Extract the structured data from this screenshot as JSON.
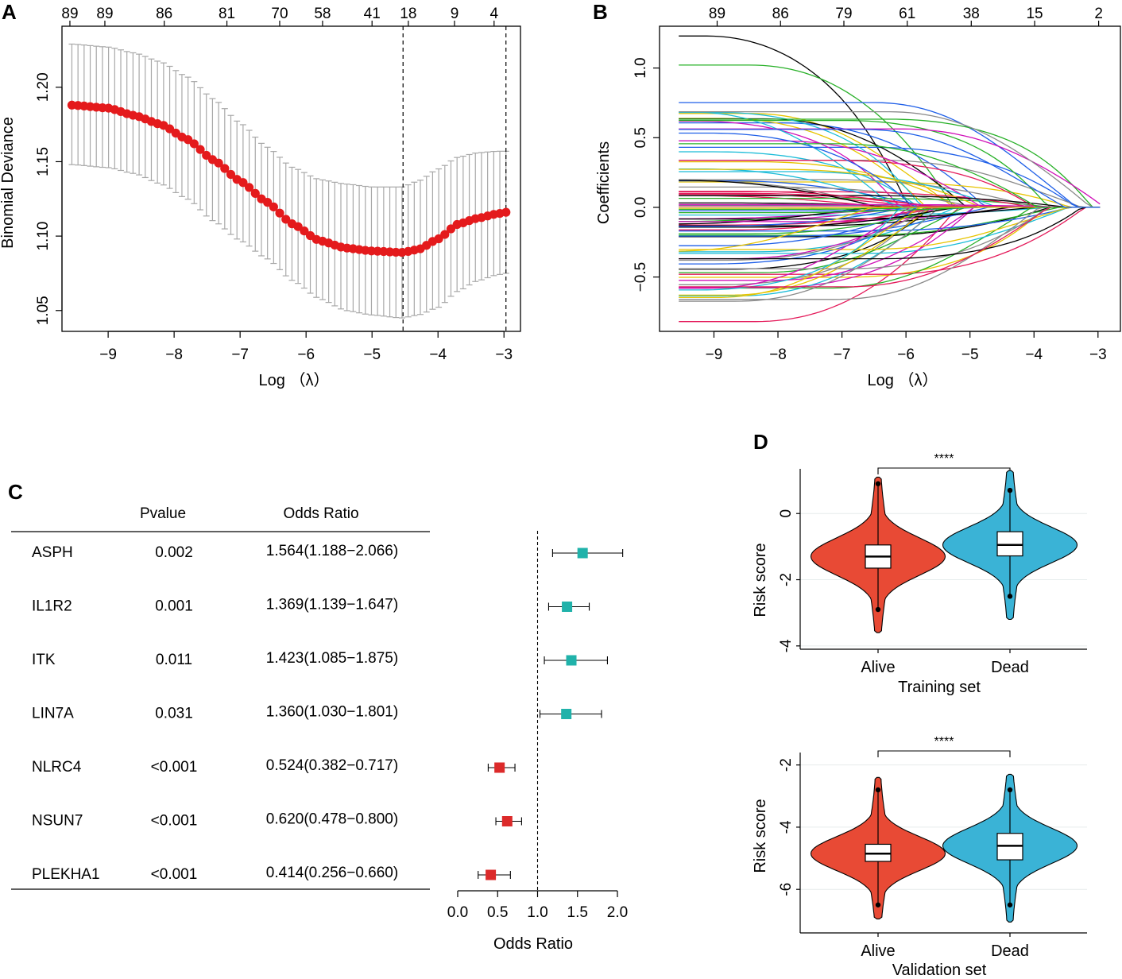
{
  "panels": {
    "a": "A",
    "b": "B",
    "c": "C",
    "d": "D"
  },
  "chart_data": [
    {
      "id": "A",
      "type": "scatter",
      "title": "",
      "xlabel": "Log （λ）",
      "ylabel": "Binomial Deviance",
      "xlim": [
        -9.7,
        -2.75
      ],
      "ylim": [
        1.036,
        1.241
      ],
      "xticks": [
        -9,
        -8,
        -7,
        -6,
        -5,
        -4,
        -3
      ],
      "yticks": [
        1.05,
        1.1,
        1.15,
        1.2
      ],
      "ytick_labels": [
        "1.05",
        "1.10",
        "1.15",
        "1.20"
      ],
      "top_axis_labels": [
        "89",
        "89",
        "86",
        "81",
        "70",
        "58",
        "41",
        "18",
        "9",
        "4"
      ],
      "top_axis_positions": [
        -9.58,
        -9.05,
        -8.15,
        -7.2,
        -6.4,
        -5.75,
        -5.0,
        -4.45,
        -3.75,
        -3.15
      ],
      "vlines": [
        -4.53,
        -2.97
      ],
      "x_start": -9.55,
      "x_end": -2.97,
      "n_points": 72,
      "mean_curve": [
        [
          -9.55,
          1.188
        ],
        [
          -9.0,
          1.186
        ],
        [
          -8.6,
          1.181
        ],
        [
          -8.2,
          1.175
        ],
        [
          -7.8,
          1.165
        ],
        [
          -7.4,
          1.151
        ],
        [
          -7.0,
          1.137
        ],
        [
          -6.6,
          1.123
        ],
        [
          -6.2,
          1.108
        ],
        [
          -5.8,
          1.097
        ],
        [
          -5.4,
          1.092
        ],
        [
          -5.0,
          1.09
        ],
        [
          -4.55,
          1.089
        ],
        [
          -4.3,
          1.091
        ],
        [
          -4.0,
          1.098
        ],
        [
          -3.7,
          1.108
        ],
        [
          -3.4,
          1.112
        ],
        [
          -3.1,
          1.115
        ],
        [
          -2.97,
          1.116
        ]
      ],
      "upper_curve": [
        [
          -9.55,
          1.229
        ],
        [
          -9.0,
          1.227
        ],
        [
          -8.6,
          1.223
        ],
        [
          -8.2,
          1.217
        ],
        [
          -7.8,
          1.207
        ],
        [
          -7.4,
          1.192
        ],
        [
          -7.0,
          1.176
        ],
        [
          -6.6,
          1.16
        ],
        [
          -6.2,
          1.146
        ],
        [
          -5.8,
          1.138
        ],
        [
          -5.4,
          1.135
        ],
        [
          -5.0,
          1.133
        ],
        [
          -4.55,
          1.133
        ],
        [
          -4.3,
          1.137
        ],
        [
          -4.0,
          1.145
        ],
        [
          -3.7,
          1.153
        ],
        [
          -3.4,
          1.156
        ],
        [
          -3.1,
          1.157
        ],
        [
          -2.97,
          1.157
        ]
      ],
      "lower_curve": [
        [
          -9.55,
          1.148
        ],
        [
          -9.0,
          1.146
        ],
        [
          -8.6,
          1.142
        ],
        [
          -8.2,
          1.135
        ],
        [
          -7.8,
          1.125
        ],
        [
          -7.4,
          1.11
        ],
        [
          -7.0,
          1.097
        ],
        [
          -6.6,
          1.085
        ],
        [
          -6.2,
          1.07
        ],
        [
          -5.8,
          1.058
        ],
        [
          -5.4,
          1.05
        ],
        [
          -5.0,
          1.047
        ],
        [
          -4.55,
          1.045
        ],
        [
          -4.3,
          1.047
        ],
        [
          -4.0,
          1.052
        ],
        [
          -3.7,
          1.063
        ],
        [
          -3.4,
          1.07
        ],
        [
          -3.1,
          1.074
        ],
        [
          -2.97,
          1.075
        ]
      ],
      "point_color": "#e41a1c",
      "bar_color": "#a8a8a8"
    },
    {
      "id": "B",
      "type": "line",
      "title": "",
      "xlabel": "Log （λ）",
      "ylabel": "Coefficients",
      "xlim": [
        -9.85,
        -2.65
      ],
      "ylim": [
        -0.89,
        1.3
      ],
      "xticks": [
        -9,
        -8,
        -7,
        -6,
        -5,
        -4,
        -3
      ],
      "yticks": [
        -0.5,
        0.0,
        0.5,
        1.0
      ],
      "ytick_labels": [
        "−0.5",
        "0.0",
        "0.5",
        "1.0"
      ],
      "top_axis_labels": [
        "89",
        "86",
        "79",
        "61",
        "38",
        "15",
        "2"
      ],
      "top_axis_positions": [
        -8.95,
        -7.96,
        -6.97,
        -5.98,
        -4.98,
        -3.99,
        -2.99
      ],
      "x_start": -9.55,
      "x_end": -2.97,
      "path_colors": [
        "#000000",
        "#e41a5a",
        "#27b027",
        "#1f5fe8",
        "#1bbcd8",
        "#d010b8",
        "#e7c400",
        "#8a8a8a"
      ],
      "n_paths": 92,
      "coef_min": -0.82,
      "coef_max": 1.23
    },
    {
      "id": "C",
      "type": "table",
      "title": "",
      "header": {
        "pvalue": "Pvalue",
        "or": "Odds Ratio"
      },
      "rows": [
        {
          "gene": "ASPH",
          "p": "0.002",
          "or_text": "1.564(1.188−2.066)",
          "or": 1.564,
          "lo": 1.188,
          "hi": 2.066,
          "color": "#20b2aa"
        },
        {
          "gene": "IL1R2",
          "p": "0.001",
          "or_text": "1.369(1.139−1.647)",
          "or": 1.369,
          "lo": 1.139,
          "hi": 1.647,
          "color": "#20b2aa"
        },
        {
          "gene": "ITK",
          "p": "0.011",
          "or_text": "1.423(1.085−1.875)",
          "or": 1.423,
          "lo": 1.085,
          "hi": 1.875,
          "color": "#20b2aa"
        },
        {
          "gene": "LIN7A",
          "p": "0.031",
          "or_text": "1.360(1.030−1.801)",
          "or": 1.36,
          "lo": 1.03,
          "hi": 1.801,
          "color": "#20b2aa"
        },
        {
          "gene": "NLRC4",
          "p": "<0.001",
          "or_text": "0.524(0.382−0.717)",
          "or": 0.524,
          "lo": 0.382,
          "hi": 0.717,
          "color": "#dc2a2a"
        },
        {
          "gene": "NSUN7",
          "p": "<0.001",
          "or_text": "0.620(0.478−0.800)",
          "or": 0.62,
          "lo": 0.478,
          "hi": 0.8,
          "color": "#dc2a2a"
        },
        {
          "gene": "PLEKHA1",
          "p": "<0.001",
          "or_text": "0.414(0.256−0.660)",
          "or": 0.414,
          "lo": 0.256,
          "hi": 0.66,
          "color": "#dc2a2a"
        }
      ],
      "xlabel": "Odds Ratio",
      "xticks": [
        "0.0",
        "0.5",
        "1.0",
        "1.5",
        "2.0"
      ],
      "xtick_values": [
        0.0,
        0.5,
        1.0,
        1.5,
        2.0
      ],
      "ref_line": 1.0
    },
    {
      "id": "D1",
      "type": "violin",
      "title": "",
      "xlabel": "Training set",
      "ylabel": "Risk score",
      "significance": "****",
      "ylim": [
        -4.1,
        1.35
      ],
      "yticks": [
        -4,
        -2,
        0
      ],
      "ytick_labels": [
        "-4",
        "-2",
        "0"
      ],
      "categories": [
        "Alive",
        "Dead"
      ],
      "colors": [
        "#e84a35",
        "#3ab3d6"
      ],
      "violin_range": [
        [
          -3.6,
          1.1
        ],
        [
          -3.2,
          1.3
        ]
      ],
      "violin_peak": [
        -1.3,
        -0.95
      ],
      "box": [
        {
          "q1": -1.65,
          "median": -1.3,
          "q3": -0.95,
          "outlier_low": -2.9,
          "outlier_high": 0.9
        },
        {
          "q1": -1.28,
          "median": -0.95,
          "q3": -0.55,
          "outlier_low": -2.5,
          "outlier_high": 0.7
        }
      ]
    },
    {
      "id": "D2",
      "type": "violin",
      "title": "",
      "xlabel": "Validation set",
      "ylabel": "Risk score",
      "significance": "****",
      "ylim": [
        -7.4,
        -1.6
      ],
      "yticks": [
        -6,
        -4,
        -2
      ],
      "ytick_labels": [
        "-6",
        "-4",
        "-2"
      ],
      "categories": [
        "Alive",
        "Dead"
      ],
      "colors": [
        "#e84a35",
        "#3ab3d6"
      ],
      "violin_range": [
        [
          -6.95,
          -2.4
        ],
        [
          -7.05,
          -2.3
        ]
      ],
      "violin_peak": [
        -4.85,
        -4.6
      ],
      "box": [
        {
          "q1": -5.1,
          "median": -4.85,
          "q3": -4.55,
          "outlier_low": -6.5,
          "outlier_high": -2.8
        },
        {
          "q1": -5.05,
          "median": -4.6,
          "q3": -4.2,
          "outlier_low": -6.5,
          "outlier_high": -2.8
        }
      ]
    }
  ]
}
